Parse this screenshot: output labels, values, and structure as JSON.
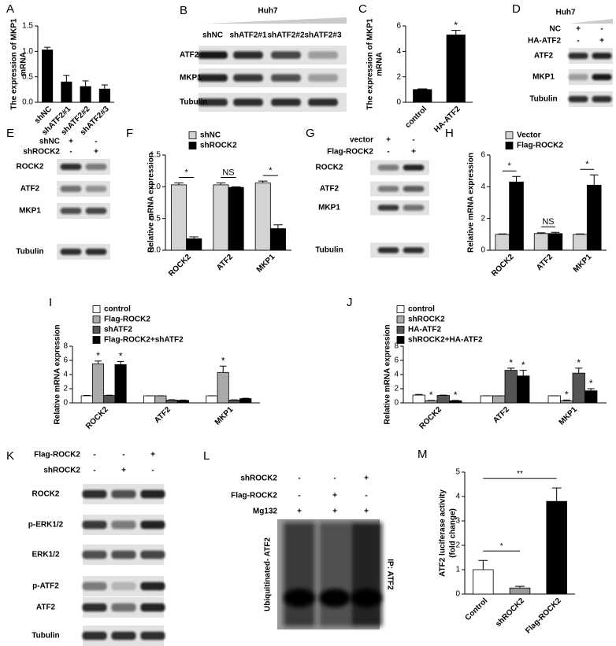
{
  "chart_data": [
    {
      "panel": "A",
      "type": "bar",
      "y_label": [
        "The expression of MKP1",
        "mRNA"
      ],
      "categories": [
        "shNC",
        "shATF2#1",
        "shATF2#2",
        "shATF2#3"
      ],
      "values": [
        1.03,
        0.4,
        0.31,
        0.26
      ],
      "errors": [
        0.05,
        0.13,
        0.11,
        0.08
      ],
      "color": "#000000",
      "ylim": [
        0,
        1.5
      ],
      "yticks": [
        {
          "value": 0,
          "label": "0.0"
        },
        {
          "value": 0.5,
          "label": "0.5"
        },
        {
          "value": 1,
          "label": "1.0"
        },
        {
          "value": 1.5,
          "label": "1.5"
        }
      ]
    },
    {
      "panel": "C",
      "type": "bar",
      "y_label": [
        "The expression of MKP1",
        "mRNA"
      ],
      "categories": [
        "control",
        "HA-ATF2"
      ],
      "values": [
        1.0,
        5.3
      ],
      "errors": [
        0.05,
        0.35
      ],
      "significance": [
        null,
        "*"
      ],
      "color": "#000000",
      "ylim": [
        0,
        6
      ],
      "yticks": [
        0,
        2,
        4,
        6
      ]
    },
    {
      "panel": "F",
      "type": "grouped_bar",
      "y_label": [
        "Relative mRNA expression"
      ],
      "categories": [
        "ROCK2",
        "ATF2",
        "MKP1"
      ],
      "series": [
        {
          "name": "shNC",
          "color": "#d3d3d3",
          "values": [
            1.03,
            1.03,
            1.06
          ],
          "errors": [
            0.03,
            0.03,
            0.03
          ]
        },
        {
          "name": "shROCK2",
          "color": "#000000",
          "values": [
            0.18,
            0.99,
            0.34
          ],
          "errors": [
            0.03,
            0.01,
            0.06
          ]
        }
      ],
      "category_significance": [
        "*",
        "NS",
        "*"
      ],
      "ylim": [
        0,
        1.5
      ],
      "yticks": [
        {
          "value": 0,
          "label": "0.0"
        },
        {
          "value": 0.5,
          "label": "0.5"
        },
        {
          "value": 1,
          "label": "1.0"
        },
        {
          "value": 1.5,
          "label": "1.5"
        }
      ]
    },
    {
      "panel": "H",
      "type": "grouped_bar",
      "y_label": [
        "Relative mRNA expression"
      ],
      "categories": [
        "ROCK2",
        "ATF2",
        "MKP1"
      ],
      "series": [
        {
          "name": "Vector",
          "color": "#d3d3d3",
          "values": [
            1.0,
            1.05,
            1.0
          ],
          "errors": [
            0.03,
            0.05,
            0.03
          ]
        },
        {
          "name": "Flag-ROCK2",
          "color": "#000000",
          "values": [
            4.3,
            1.05,
            4.1
          ],
          "errors": [
            0.35,
            0.08,
            0.65
          ]
        }
      ],
      "category_significance": [
        "*",
        "NS",
        "*"
      ],
      "ylim": [
        0,
        6
      ],
      "yticks": [
        0,
        2,
        4,
        6
      ]
    },
    {
      "panel": "I",
      "type": "grouped_bar",
      "y_label": [
        "Relative mRNA expression"
      ],
      "categories": [
        "ROCK2",
        "ATF2",
        "MKP1"
      ],
      "series": [
        {
          "name": "control",
          "color": "#ffffff",
          "values": [
            1.0,
            1.0,
            1.0
          ],
          "errors": [
            0.05,
            0,
            0
          ]
        },
        {
          "name": "Flag-ROCK2",
          "color": "#aaaaaa",
          "values": [
            5.5,
            1.0,
            4.3
          ],
          "errors": [
            0.4,
            0,
            0.9
          ],
          "significance": [
            "*",
            null,
            "*"
          ]
        },
        {
          "name": "shATF2",
          "color": "#555555",
          "values": [
            1.05,
            0.4,
            0.4
          ],
          "errors": [
            0.03,
            0.05,
            0.03
          ]
        },
        {
          "name": "Flag-ROCK2+shATF2",
          "color": "#000000",
          "values": [
            5.4,
            0.35,
            0.6
          ],
          "errors": [
            0.45,
            0.05,
            0.05
          ],
          "significance": [
            "*",
            null,
            null
          ]
        }
      ],
      "ylim": [
        0,
        8
      ],
      "yticks": [
        0,
        2,
        4,
        6,
        8
      ]
    },
    {
      "panel": "J",
      "type": "grouped_bar",
      "y_label": [
        "Relative mRNA expression"
      ],
      "categories": [
        "ROCK2",
        "ATF2",
        "MKP1"
      ],
      "series": [
        {
          "name": "control",
          "color": "#ffffff",
          "values": [
            1.1,
            1.0,
            1.0
          ],
          "errors": [
            0.1,
            0,
            0
          ]
        },
        {
          "name": "shROCK2",
          "color": "#aaaaaa",
          "values": [
            0.3,
            1.0,
            0.3
          ],
          "errors": [
            0.05,
            0,
            0.1
          ],
          "significance": [
            "*",
            null,
            "*"
          ]
        },
        {
          "name": "HA-ATF2",
          "color": "#555555",
          "values": [
            1.05,
            4.6,
            4.2
          ],
          "errors": [
            0.05,
            0.3,
            0.7
          ],
          "significance": [
            null,
            "*",
            "*"
          ]
        },
        {
          "name": "shROCK2+HA-ATF2",
          "color": "#000000",
          "values": [
            0.3,
            3.8,
            1.7
          ],
          "errors": [
            0.05,
            0.8,
            0.3
          ],
          "significance": [
            "*",
            "*",
            "*"
          ]
        }
      ],
      "ylim": [
        0,
        8
      ],
      "yticks": [
        0,
        2,
        4,
        6,
        8
      ]
    },
    {
      "panel": "M",
      "type": "bar",
      "y_label": [
        "ATF2 luciferase activity",
        "(fold change)"
      ],
      "categories": [
        "Control",
        "shROCK2",
        "Flag-ROCK2"
      ],
      "values": [
        1.0,
        0.25,
        3.8
      ],
      "errors": [
        0.38,
        0.07,
        0.55
      ],
      "colors": [
        "#ffffff",
        "#999999",
        "#000000"
      ],
      "comparisons": [
        {
          "pair": [
            0,
            1
          ],
          "label": "*"
        },
        {
          "pair": [
            0,
            2
          ],
          "label": "**"
        }
      ],
      "ylim": [
        0,
        5
      ],
      "yticks": [
        0,
        1,
        2,
        3,
        4,
        5
      ]
    }
  ],
  "blots": [
    {
      "panel": "B",
      "title": "Huh7",
      "lanes": [
        "shNC",
        "shATF2#1",
        "shATF2#2",
        "shATF2#3"
      ],
      "rows": [
        "ATF2",
        "MKP1",
        "Tubulin"
      ]
    },
    {
      "panel": "D",
      "title": "Huh7",
      "conditions": [
        {
          "name": "NC",
          "marks": [
            "+",
            "-"
          ]
        },
        {
          "name": "HA-ATF2",
          "marks": [
            "-",
            "+"
          ]
        }
      ],
      "rows": [
        "ATF2",
        "MKP1",
        "Tubulin"
      ]
    },
    {
      "panel": "E",
      "conditions": [
        {
          "name": "shNC",
          "marks": [
            "+",
            "-"
          ]
        },
        {
          "name": "shROCK2",
          "marks": [
            "-",
            "+"
          ]
        }
      ],
      "rows": [
        "ROCK2",
        "ATF2",
        "MKP1",
        "Tubulin"
      ]
    },
    {
      "panel": "G",
      "conditions": [
        {
          "name": "vector",
          "marks": [
            "+",
            "-"
          ]
        },
        {
          "name": "Flag-ROCK2",
          "marks": [
            "-",
            "+"
          ]
        }
      ],
      "rows": [
        "ROCK2",
        "ATF2",
        "MKP1",
        "Tubulin"
      ]
    },
    {
      "panel": "K",
      "conditions": [
        {
          "name": "Flag-ROCK2",
          "marks": [
            "-",
            "-",
            "+"
          ]
        },
        {
          "name": "shROCK2",
          "marks": [
            "-",
            "+",
            "-"
          ]
        }
      ],
      "rows": [
        "ROCK2",
        "p-ERK1/2",
        "ERK1/2",
        "p-ATF2",
        "ATF2",
        "Tubulin"
      ]
    },
    {
      "panel": "L",
      "conditions": [
        {
          "name": "shROCK2",
          "marks": [
            "-",
            "-",
            "+"
          ]
        },
        {
          "name": "Flag-ROCK2",
          "marks": [
            "-",
            "+",
            "-"
          ]
        },
        {
          "name": "Mg132",
          "marks": [
            "+",
            "+",
            "+"
          ]
        }
      ],
      "side_labels": [
        "Ubiquitinated- ATF2",
        "IP: ATF2"
      ]
    }
  ]
}
